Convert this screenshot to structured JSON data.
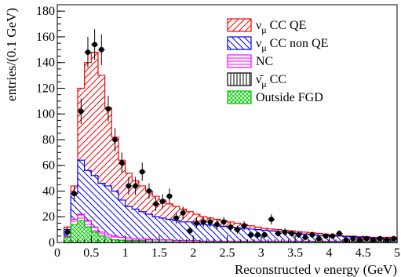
{
  "chart_data": {
    "type": "histogram",
    "xlabel": "Reconstructed ν energy (GeV)",
    "ylabel": "entries/(0.1 GeV)",
    "xlim": [
      0,
      5
    ],
    "ylim": [
      0,
      185
    ],
    "xticks": [
      0,
      0.5,
      1,
      1.5,
      2,
      2.5,
      3,
      3.5,
      4,
      4.5,
      5
    ],
    "xtick_labels": [
      "0",
      "0.5",
      "1",
      "1.5",
      "2",
      "2.5",
      "3",
      "3.5",
      "4",
      "4.5",
      "5"
    ],
    "yticks": [
      0,
      20,
      40,
      60,
      80,
      100,
      120,
      140,
      160,
      180
    ],
    "ytick_labels": [
      "0",
      "20",
      "40",
      "60",
      "80",
      "100",
      "120",
      "140",
      "160",
      "180"
    ],
    "grid": false,
    "legend_position": "top-right",
    "bin_width": 0.1,
    "bin_edges_start": 0.1,
    "stack_series": [
      {
        "key": "qe",
        "label_main": "ν",
        "label_sub": "μ",
        "label_rest": " CC QE",
        "color": "#ff0000",
        "hatch": "diag-down"
      },
      {
        "key": "nonqe",
        "label_main": "ν",
        "label_sub": "μ",
        "label_rest": " CC non QE",
        "color": "#0000ff",
        "hatch": "diag-up"
      },
      {
        "key": "nc",
        "label_main": "NC",
        "label_sub": "",
        "label_rest": "",
        "color": "#ff00ff",
        "hatch": "horizontal"
      },
      {
        "key": "antinu",
        "label_main": "ν̄",
        "label_sub": "μ",
        "label_rest": " CC",
        "color": "#000000",
        "hatch": "vertical"
      },
      {
        "key": "outfgd",
        "label_main": "Outside FGD",
        "label_sub": "",
        "label_rest": "",
        "color": "#00cc00",
        "hatch": "cross"
      }
    ],
    "stack_totals": {
      "outfgd": [
        4,
        14,
        17,
        12,
        8,
        5,
        3,
        2,
        1.5,
        1,
        1,
        1,
        0.5,
        0.5,
        0.5,
        0.5,
        0.5,
        0.5,
        0.5,
        0.5,
        0.5,
        0.5,
        0.5,
        0.5,
        0.5,
        0.5,
        0.5,
        0.5,
        0.5,
        0.5,
        0.5,
        0.5,
        0.5,
        0.5,
        0.5,
        0.5,
        0.5,
        0.5,
        0.5,
        0.5,
        0.5,
        0.5,
        0.5,
        0.5,
        0.5,
        0.5,
        0.5,
        0.5,
        0.5
      ],
      "antinu": [
        4,
        14,
        17,
        12,
        8,
        5,
        3,
        2,
        1.5,
        1,
        1,
        1,
        0.5,
        0.5,
        0.5,
        0.5,
        0.5,
        0.5,
        0.5,
        0.5,
        0.5,
        0.5,
        0.5,
        0.5,
        0.5,
        0.5,
        0.5,
        0.5,
        0.5,
        0.5,
        0.5,
        0.5,
        0.5,
        0.5,
        0.5,
        0.5,
        0.5,
        0.5,
        0.5,
        0.5,
        0.5,
        0.5,
        0.5,
        0.5,
        0.5,
        0.5,
        0.5,
        0.5,
        0.5
      ],
      "nc": [
        5,
        18,
        22,
        17,
        12,
        8,
        6,
        5,
        4,
        3.5,
        3,
        3,
        2.5,
        2,
        2,
        2,
        1.5,
        1.5,
        1.5,
        1.5,
        1,
        1,
        1,
        1,
        1,
        1,
        1,
        1,
        1,
        1,
        1,
        1,
        1,
        1,
        1,
        1,
        1,
        1,
        1,
        1,
        1,
        1,
        1,
        1,
        1,
        1,
        1,
        1,
        1
      ],
      "nonqe": [
        10,
        38,
        64,
        56,
        52,
        46,
        44,
        40,
        33,
        28,
        26,
        24,
        22,
        20,
        19,
        18,
        17,
        16,
        16,
        15,
        14,
        13.5,
        13,
        12.5,
        12,
        11.5,
        11,
        10.5,
        10,
        9.5,
        9,
        8.5,
        8,
        7.5,
        7,
        6.5,
        6,
        5.5,
        5.5,
        5,
        5,
        4.5,
        4.5,
        4,
        4,
        3.5,
        3.5,
        3,
        3
      ],
      "qe": [
        12,
        44,
        120,
        140,
        148,
        130,
        105,
        82,
        64,
        54,
        48,
        44,
        40,
        36,
        33,
        30,
        28,
        26,
        24,
        22,
        20,
        19,
        18,
        17,
        16,
        15,
        14,
        13,
        12,
        11,
        10.5,
        10,
        9.5,
        9,
        8.5,
        8,
        7.5,
        7,
        6.5,
        6,
        5.5,
        5,
        5,
        4.5,
        4.5,
        4,
        4,
        4,
        4
      ]
    },
    "data_points": {
      "x": [
        0.15,
        0.25,
        0.35,
        0.45,
        0.55,
        0.65,
        0.75,
        0.85,
        0.95,
        1.05,
        1.15,
        1.25,
        1.35,
        1.45,
        1.55,
        1.65,
        1.75,
        1.85,
        1.95,
        2.05,
        2.15,
        2.25,
        2.35,
        2.45,
        2.55,
        2.65,
        2.75,
        2.85,
        2.95,
        3.05,
        3.15,
        3.25,
        3.35,
        3.45,
        3.55,
        3.65,
        3.75,
        3.85,
        3.95,
        4.05,
        4.15,
        4.25,
        4.35,
        4.45,
        4.55,
        4.65,
        4.75,
        4.85,
        4.95
      ],
      "y": [
        8,
        38,
        102,
        148,
        154,
        150,
        104,
        80,
        62,
        44,
        44,
        55,
        40,
        30,
        32,
        36,
        19,
        23,
        9,
        15,
        16,
        16,
        14,
        16,
        12,
        10,
        13,
        6,
        6,
        6,
        18,
        7,
        8,
        7,
        6,
        4,
        6,
        3,
        5,
        5,
        7,
        2,
        3,
        2,
        3,
        2,
        3,
        2,
        3
      ],
      "err": [
        3,
        6,
        10,
        12,
        12,
        12,
        10,
        9,
        8,
        7,
        7,
        7,
        6,
        5.5,
        5.5,
        6,
        4.5,
        5,
        3,
        4,
        4,
        4,
        4,
        4,
        3.5,
        3,
        3.5,
        2.5,
        2.5,
        2.5,
        4,
        2.5,
        3,
        2.5,
        2.5,
        2,
        2.5,
        1.5,
        2,
        2,
        2.5,
        1.5,
        1.5,
        1.5,
        1.5,
        1.5,
        1.5,
        1.5,
        1.5
      ]
    }
  }
}
